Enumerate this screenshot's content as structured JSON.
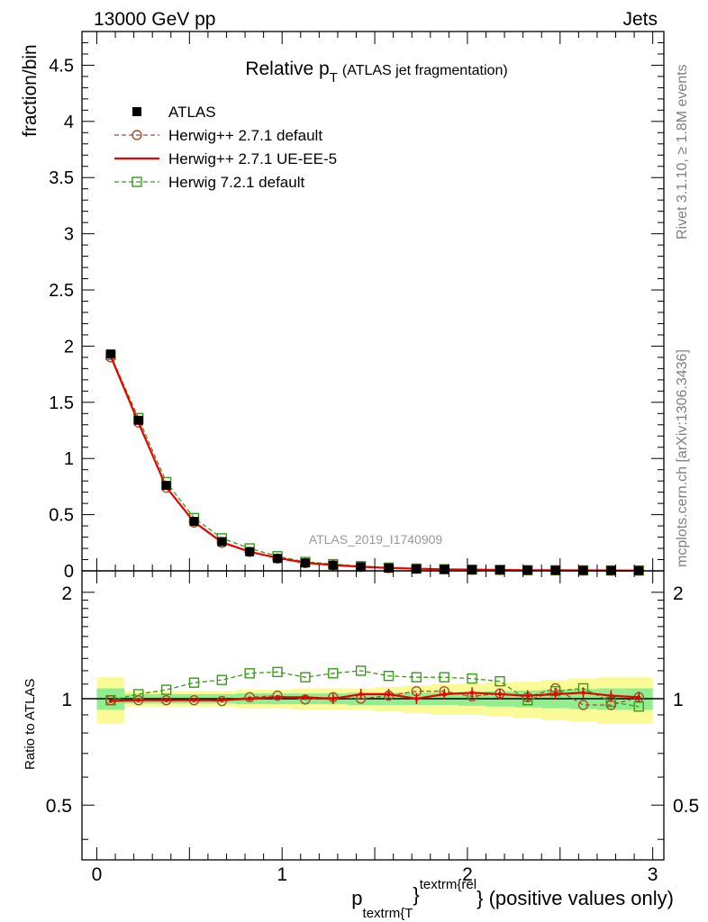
{
  "header": {
    "left": "13000 GeV pp",
    "right": "Jets"
  },
  "side_labels": {
    "rivet": "Rivet 3.1.10, ≥ 1.8M events",
    "mcplots": "mcplots.cern.ch [arXiv:1306.3436]"
  },
  "watermark": "ATLAS_2019_I1740909",
  "colors": {
    "atlas": "#000000",
    "herwig_default": "#a0522d",
    "herwig_ueee5": "#ee0000",
    "herwig72": "#3a9a1a",
    "band_inner": "#90ee90",
    "band_outer": "#fafa96"
  },
  "chart_data": [
    {
      "type": "line",
      "title_main": "Relative p",
      "title_sub": "T",
      "title_rest": "(ATLAS jet fragmentation)",
      "ylabel": "fraction/bin",
      "xlim": [
        -0.08,
        3.06
      ],
      "ylim": [
        0,
        4.8
      ],
      "yticks": [
        {
          "v": 0.5,
          "label": "0.5"
        },
        {
          "v": 1,
          "label": "1"
        },
        {
          "v": 1.5,
          "label": "1.5"
        },
        {
          "v": 2,
          "label": "2"
        },
        {
          "v": 2.5,
          "label": "2.5"
        },
        {
          "v": 3,
          "label": "3"
        },
        {
          "v": 3.5,
          "label": "3.5"
        },
        {
          "v": 4,
          "label": "4"
        },
        {
          "v": 4.5,
          "label": "4.5"
        }
      ],
      "y_zero_label": "0",
      "x": [
        0.075,
        0.225,
        0.375,
        0.525,
        0.675,
        0.825,
        0.975,
        1.125,
        1.275,
        1.425,
        1.575,
        1.725,
        1.875,
        2.025,
        2.175,
        2.325,
        2.475,
        2.625,
        2.775,
        2.925
      ],
      "legend": [
        {
          "key": "atlas",
          "label": "ATLAS"
        },
        {
          "key": "herwig_default",
          "label": "Herwig++ 2.7.1 default"
        },
        {
          "key": "herwig_ueee5",
          "label": "Herwig++ 2.7.1 UE-EE-5"
        },
        {
          "key": "herwig72",
          "label": "Herwig 7.2.1 default"
        }
      ],
      "series": [
        {
          "name": "ATLAS",
          "key": "atlas",
          "values": [
            1.93,
            1.34,
            0.76,
            0.44,
            0.26,
            0.17,
            0.11,
            0.07,
            0.05,
            0.035,
            0.025,
            0.018,
            0.013,
            0.01,
            0.008,
            0.006,
            0.005,
            0.004,
            0.003,
            0.0025
          ]
        },
        {
          "name": "Herwig++ 2.7.1 default",
          "key": "herwig_default",
          "values": [
            1.9,
            1.32,
            0.74,
            0.43,
            0.25,
            0.17,
            0.11,
            0.07,
            0.05,
            0.035,
            0.025,
            0.019,
            0.014,
            0.01,
            0.008,
            0.006,
            0.005,
            0.004,
            0.003,
            0.0025
          ]
        },
        {
          "name": "Herwig++ 2.7.1 UE-EE-5",
          "key": "herwig_ueee5",
          "values": [
            1.91,
            1.32,
            0.745,
            0.435,
            0.255,
            0.17,
            0.115,
            0.072,
            0.051,
            0.037,
            0.026,
            0.019,
            0.014,
            0.011,
            0.008,
            0.006,
            0.005,
            0.004,
            0.003,
            0.0025
          ]
        },
        {
          "name": "Herwig 7.2.1 default",
          "key": "herwig72",
          "values": [
            1.92,
            1.36,
            0.79,
            0.47,
            0.29,
            0.2,
            0.13,
            0.08,
            0.06,
            0.042,
            0.029,
            0.02,
            0.015,
            0.011,
            0.009,
            0.006,
            0.005,
            0.004,
            0.003,
            0.0025
          ]
        }
      ]
    },
    {
      "type": "line",
      "ylabel": "Ratio to ATLAS",
      "xlabel_main": "p",
      "xlabel_sub": "textrm{T",
      "xlabel_sup": "textrm{rel",
      "xlabel_rest": "} (positive values only)",
      "xlabel_brace": "}",
      "xlim": [
        -0.08,
        3.06
      ],
      "ylim": [
        0.35,
        2.3
      ],
      "ylog": true,
      "xticks": [
        {
          "v": 0,
          "label": "0"
        },
        {
          "v": 1,
          "label": "1"
        },
        {
          "v": 2,
          "label": "2"
        },
        {
          "v": 3,
          "label": "3"
        }
      ],
      "yticks": [
        {
          "v": 0.5,
          "label": "0.5"
        },
        {
          "v": 1,
          "label": "1"
        },
        {
          "v": 2,
          "label": "2"
        }
      ],
      "x": [
        0.075,
        0.225,
        0.375,
        0.525,
        0.675,
        0.825,
        0.975,
        1.125,
        1.275,
        1.425,
        1.575,
        1.725,
        1.875,
        2.025,
        2.175,
        2.325,
        2.475,
        2.625,
        2.775,
        2.925
      ],
      "band_inner": [
        0.07,
        0.03,
        0.03,
        0.03,
        0.03,
        0.035,
        0.035,
        0.035,
        0.035,
        0.04,
        0.04,
        0.04,
        0.04,
        0.045,
        0.05,
        0.055,
        0.06,
        0.065,
        0.07,
        0.07
      ],
      "band_outer": [
        0.15,
        0.05,
        0.05,
        0.05,
        0.05,
        0.06,
        0.06,
        0.07,
        0.07,
        0.07,
        0.08,
        0.09,
        0.1,
        0.1,
        0.11,
        0.12,
        0.13,
        0.14,
        0.15,
        0.15
      ],
      "series": [
        {
          "name": "Herwig++ 2.7.1 default",
          "key": "herwig_default",
          "values": [
            0.99,
            0.99,
            0.99,
            0.99,
            0.985,
            1.01,
            1.02,
            0.995,
            1.01,
            1.0,
            1.02,
            1.05,
            1.05,
            1.015,
            1.035,
            1.01,
            1.07,
            0.96,
            0.96,
            1.01
          ]
        },
        {
          "name": "Herwig++ 2.7.1 UE-EE-5",
          "key": "herwig_ueee5",
          "values": [
            0.985,
            0.99,
            0.99,
            0.99,
            0.99,
            1.0,
            1.01,
            1.01,
            1.0,
            1.03,
            1.03,
            1.0,
            1.03,
            1.04,
            1.03,
            1.02,
            1.03,
            1.04,
            1.02,
            1.01
          ]
        },
        {
          "name": "Herwig 7.2.1 default",
          "key": "herwig72",
          "values": [
            0.99,
            1.03,
            1.06,
            1.11,
            1.13,
            1.18,
            1.19,
            1.15,
            1.18,
            1.2,
            1.16,
            1.15,
            1.15,
            1.14,
            1.12,
            0.99,
            1.05,
            1.07,
            0.98,
            0.95
          ]
        }
      ]
    }
  ]
}
